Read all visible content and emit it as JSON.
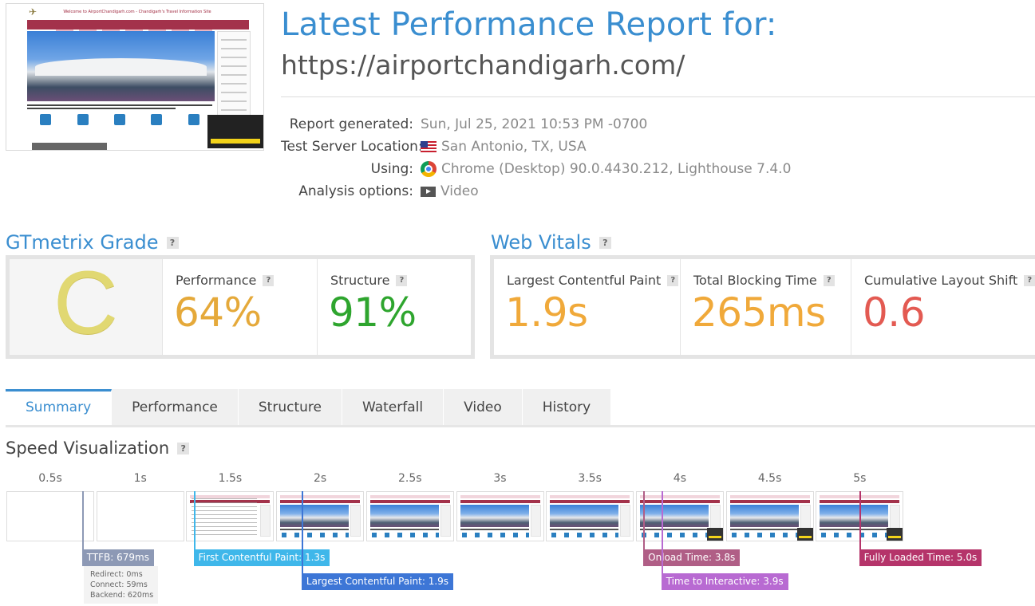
{
  "report": {
    "title": "Latest Performance Report for:",
    "url": "https://airportchandigarh.com/",
    "meta": [
      {
        "label": "Report generated:",
        "value": "Sun, Jul 25, 2021 10:53 PM -0700",
        "icon": ""
      },
      {
        "label": "Test Server Location:",
        "value": "San Antonio, TX, USA",
        "icon": "us-flag-icon"
      },
      {
        "label": "Using:",
        "value": "Chrome (Desktop) 90.0.4430.212, Lighthouse 7.4.0",
        "icon": "chrome-icon"
      },
      {
        "label": "Analysis options:",
        "value": "Video",
        "icon": "video-icon"
      }
    ]
  },
  "thumbnail": {
    "banner": "Welcome to AirportChandigarh.com - Chandigarh's Travel Information Site"
  },
  "grade": {
    "title": "GTmetrix Grade",
    "help": "?",
    "letter": "C",
    "performance_label": "Performance",
    "performance_value": "64%",
    "structure_label": "Structure",
    "structure_value": "91%"
  },
  "vitals": {
    "title": "Web Vitals",
    "help": "?",
    "lcp_label": "Largest Contentful Paint",
    "lcp_value": "1.9s",
    "tbt_label": "Total Blocking Time",
    "tbt_value": "265ms",
    "cls_label": "Cumulative Layout Shift",
    "cls_value": "0.6"
  },
  "colors": {
    "accent": "#3a8ed0",
    "grade_c": "#e1d872",
    "performance": "#e5a93a",
    "structure": "#2ea52e",
    "vital_orange": "#f0a93a",
    "vital_red": "#e35a52",
    "ttfb": "#8d99b5",
    "fcp": "#3fb7ea",
    "lcp": "#3d76d6",
    "onload": "#b05e86",
    "fully_loaded": "#b5346a",
    "tti": "#b86ad2"
  },
  "tabs": [
    {
      "label": "Summary",
      "active": true
    },
    {
      "label": "Performance",
      "active": false
    },
    {
      "label": "Structure",
      "active": false
    },
    {
      "label": "Waterfall",
      "active": false
    },
    {
      "label": "Video",
      "active": false
    },
    {
      "label": "History",
      "active": false
    }
  ],
  "speed": {
    "title": "Speed Visualization",
    "help": "?",
    "ticks": [
      "0.5s",
      "1s",
      "1.5s",
      "2s",
      "2.5s",
      "3s",
      "3.5s",
      "4s",
      "4.5s",
      "5s"
    ],
    "frames": [
      "blank",
      "blank",
      "partial",
      "full",
      "full",
      "full",
      "full",
      "full",
      "full",
      "full"
    ],
    "ttfb": {
      "label": "TTFB: 679ms",
      "time_s": 0.679,
      "redirect": "Redirect: 0ms",
      "connect": "Connect: 59ms",
      "backend": "Backend: 620ms"
    },
    "markers": [
      {
        "label": "First Contentful Paint: 1.3s",
        "time_s": 1.3,
        "color": "#3fb7ea",
        "row": 1
      },
      {
        "label": "Largest Contentful Paint: 1.9s",
        "time_s": 1.9,
        "color": "#3d76d6",
        "row": 2
      },
      {
        "label": "Onload Time: 3.8s",
        "time_s": 3.8,
        "color": "#b05e86",
        "row": 1
      },
      {
        "label": "Time to Interactive: 3.9s",
        "time_s": 3.9,
        "color": "#b86ad2",
        "row": 2
      },
      {
        "label": "Fully Loaded Time: 5.0s",
        "time_s": 5.0,
        "color": "#b5346a",
        "row": 1
      }
    ]
  }
}
